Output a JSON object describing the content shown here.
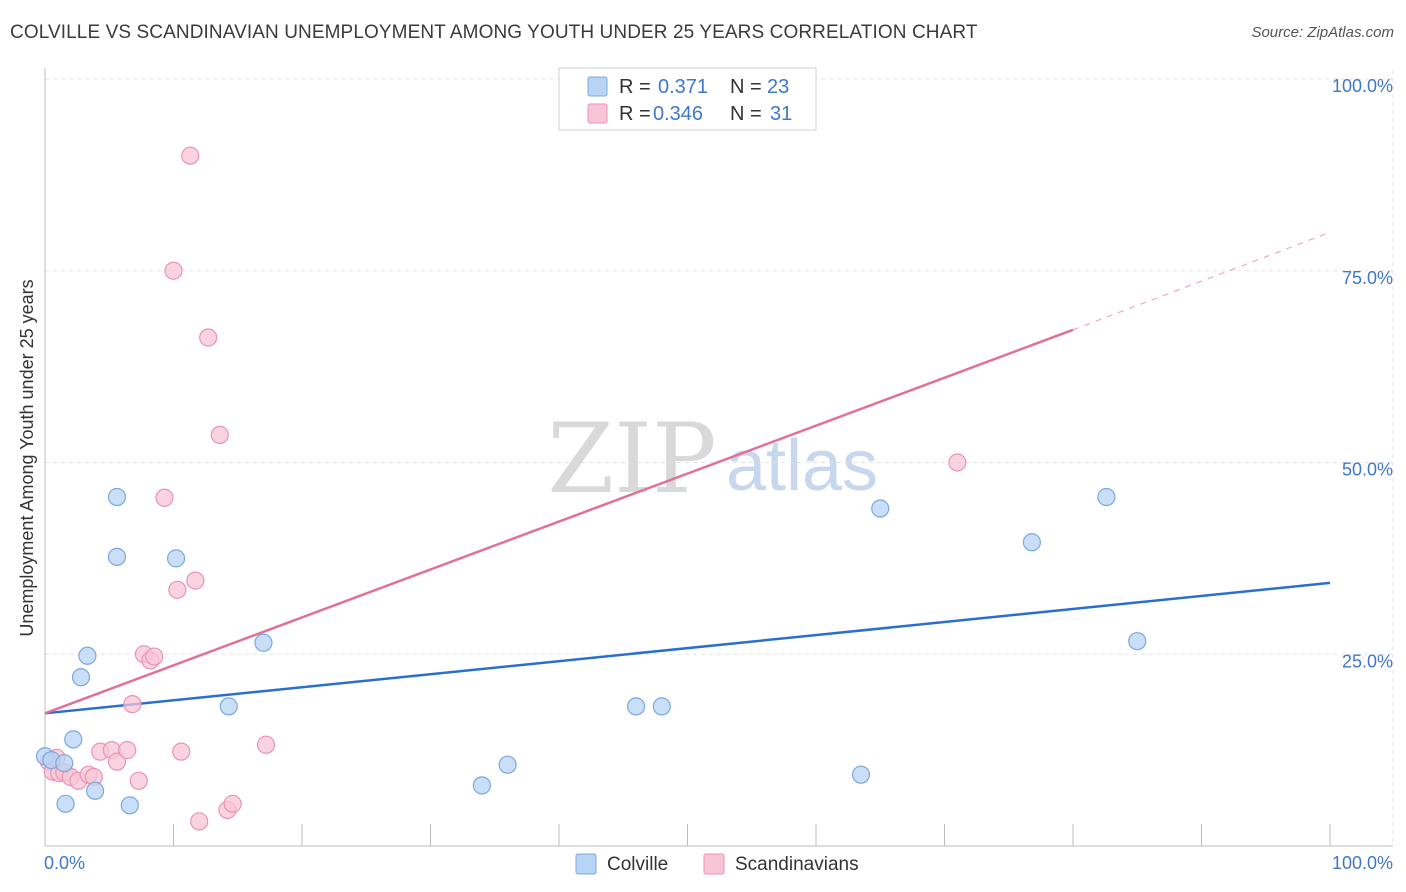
{
  "title": "COLVILLE VS SCANDINAVIAN UNEMPLOYMENT AMONG YOUTH UNDER 25 YEARS CORRELATION CHART",
  "source": "Source: ZipAtlas.com",
  "watermark": {
    "zip": "ZIP",
    "atlas": "atlas"
  },
  "colors": {
    "colville_fill": "#b8d4f4",
    "colville_stroke": "#7aa8e0",
    "colville_line": "#2a6fd0",
    "scand_fill": "#f7c5d5",
    "scand_stroke": "#ec93b1",
    "scand_line": "#e0709a",
    "grid": "#e3e3e3",
    "tick_text": "#3f78c8"
  },
  "legend": {
    "rows": [
      {
        "r_label": "R =",
        "r_value": "0.371",
        "n_label": "N =",
        "n_value": "23"
      },
      {
        "r_label": "R =",
        "r_value": "0.346",
        "n_label": "N =",
        "n_value": "31"
      }
    ]
  },
  "bottom_legend": {
    "colville": "Colville",
    "scandinavians": "Scandinavians"
  },
  "chart_data": {
    "type": "scatter",
    "title": "COLVILLE VS SCANDINAVIAN UNEMPLOYMENT AMONG YOUTH UNDER 25 YEARS CORRELATION CHART",
    "xlabel": "",
    "ylabel": "Unemployment Among Youth under 25 years",
    "xlim": [
      0,
      100
    ],
    "ylim": [
      0,
      100
    ],
    "x_tick_labels": {
      "left": "0.0%",
      "right": "100.0%"
    },
    "y_ticks": [
      {
        "value": 25,
        "label": "25.0%"
      },
      {
        "value": 50,
        "label": "50.0%"
      },
      {
        "value": 75,
        "label": "75.0%"
      },
      {
        "value": 100,
        "label": "100.0%"
      }
    ],
    "series": [
      {
        "name": "Colville",
        "r": 0.371,
        "n": 23,
        "points": [
          [
            0.0,
            11.7
          ],
          [
            0.5,
            11.2
          ],
          [
            1.5,
            10.8
          ],
          [
            1.6,
            5.5
          ],
          [
            2.2,
            13.9
          ],
          [
            2.8,
            22.0
          ],
          [
            3.3,
            24.8
          ],
          [
            3.9,
            7.2
          ],
          [
            5.6,
            45.5
          ],
          [
            5.6,
            37.7
          ],
          [
            6.6,
            5.3
          ],
          [
            10.2,
            37.5
          ],
          [
            14.3,
            18.2
          ],
          [
            17.0,
            26.5
          ],
          [
            34.0,
            7.9
          ],
          [
            36.0,
            10.6
          ],
          [
            46.0,
            18.2
          ],
          [
            48.0,
            18.2
          ],
          [
            63.5,
            9.3
          ],
          [
            65.0,
            44.0
          ],
          [
            76.8,
            39.6
          ],
          [
            82.6,
            45.5
          ],
          [
            85.0,
            26.7
          ]
        ],
        "trend": {
          "x0": 0,
          "y0": 17.3,
          "x1": 100,
          "y1": 34.3
        }
      },
      {
        "name": "Scandinavians",
        "r": 0.346,
        "n": 31,
        "points": [
          [
            0.3,
            11.0
          ],
          [
            0.6,
            9.7
          ],
          [
            0.9,
            11.5
          ],
          [
            1.1,
            9.5
          ],
          [
            1.5,
            9.6
          ],
          [
            2.0,
            9.0
          ],
          [
            2.6,
            8.5
          ],
          [
            3.4,
            9.3
          ],
          [
            3.8,
            9.0
          ],
          [
            4.3,
            12.3
          ],
          [
            5.2,
            12.5
          ],
          [
            5.6,
            11.0
          ],
          [
            6.4,
            12.5
          ],
          [
            6.8,
            18.5
          ],
          [
            7.3,
            8.5
          ],
          [
            7.7,
            25.0
          ],
          [
            8.2,
            24.2
          ],
          [
            8.5,
            24.7
          ],
          [
            9.3,
            45.4
          ],
          [
            10.0,
            75.0
          ],
          [
            10.3,
            33.4
          ],
          [
            10.6,
            12.3
          ],
          [
            11.3,
            90.0
          ],
          [
            11.7,
            34.6
          ],
          [
            12.0,
            3.2
          ],
          [
            12.7,
            66.3
          ],
          [
            13.6,
            53.6
          ],
          [
            14.2,
            4.7
          ],
          [
            14.6,
            5.5
          ],
          [
            17.2,
            13.2
          ],
          [
            71.0,
            50.0
          ]
        ],
        "trend": {
          "x0": 0,
          "y0": 17.3,
          "x1": 80,
          "y1": 67.3
        },
        "trend_dashed_extension": {
          "x0": 80,
          "y0": 67.3,
          "x1": 100,
          "y1": 80.0
        }
      }
    ]
  }
}
